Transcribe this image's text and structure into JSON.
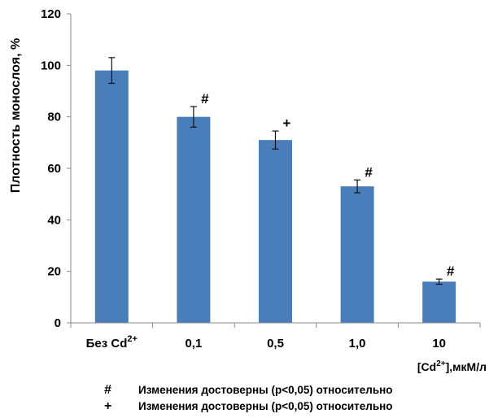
{
  "chart_data": {
    "type": "bar",
    "title": "",
    "ylabel": "Плотность монослоя, %",
    "xlabel": {
      "prefix": "[",
      "main": "Cd",
      "sup": "2+",
      "suffix": "],мкМ/л"
    },
    "ylim": [
      0,
      120
    ],
    "yticks": [
      "0",
      "20",
      "40",
      "60",
      "80",
      "100",
      "120"
    ],
    "grid": false,
    "bar_color": "#4a7ebb",
    "categories": [
      {
        "text": "Без Cd",
        "sup": "2+"
      },
      {
        "text": "0,1",
        "sup": ""
      },
      {
        "text": "0,5",
        "sup": ""
      },
      {
        "text": "1,0",
        "sup": ""
      },
      {
        "text": "10",
        "sup": ""
      }
    ],
    "values": [
      98,
      80,
      71,
      53,
      16
    ],
    "errors": [
      5,
      4,
      3.5,
      2.5,
      1
    ],
    "marks": [
      "",
      "#",
      "+",
      "#",
      "#"
    ]
  },
  "legend": [
    {
      "symbol": "#",
      "text": "Изменения достоверны (p<0,05) относительно"
    },
    {
      "symbol": "+",
      "text": "Изменения достоверны (p<0,05) относительно"
    }
  ]
}
